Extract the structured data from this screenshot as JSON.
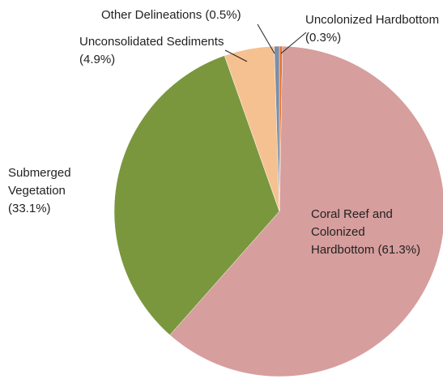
{
  "chart_data": {
    "type": "pie",
    "categories": [
      "Uncolonized Hardbottom",
      "Coral Reef and Colonized Hardbottom",
      "Submerged Vegetation",
      "Unconsolidated Sediments",
      "Other Delineations"
    ],
    "values": [
      0.3,
      61.3,
      33.1,
      4.9,
      0.5
    ],
    "value_labels": [
      "(0.3%)",
      "(61.3%)",
      "(33.1%)",
      "(4.9%)",
      "(0.5%)"
    ],
    "colors": [
      "#e2702c",
      "#d69e9d",
      "#7a973e",
      "#f6c190",
      "#7d8ea6"
    ]
  }
}
